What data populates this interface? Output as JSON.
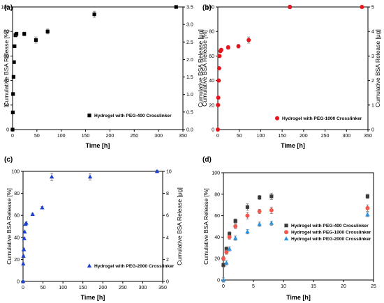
{
  "chart_data": [
    {
      "panel": "(a)",
      "type": "scatter",
      "xlabel": "Time [h]",
      "ylabel": "Cumulative BSA Release [%]",
      "y2label": "Cumulative BSA Release [μg]",
      "xlim": [
        0,
        350
      ],
      "ylim": [
        0,
        100
      ],
      "y2lim": [
        0,
        3.5
      ],
      "xticks": [
        "0",
        "50",
        "100",
        "150",
        "200",
        "250",
        "300",
        "350"
      ],
      "yticks": [
        "0",
        "20",
        "40",
        "60",
        "80",
        "100"
      ],
      "y2ticks": [
        "0.0",
        "0.5",
        "1.0",
        "1.5",
        "2.0",
        "2.5",
        "3.0",
        "3.5"
      ],
      "legend_position": "bottom-right",
      "grid": false,
      "series": [
        {
          "name": "Hydrogel with PEG-400 Crosslinker",
          "color": "#000000",
          "marker": "square",
          "x": [
            0,
            0.5,
            1,
            2,
            3,
            4,
            6,
            8,
            24,
            48,
            72,
            168,
            336
          ],
          "y": [
            0,
            14,
            29,
            43,
            55,
            68,
            77,
            78,
            78,
            73,
            80,
            94,
            100
          ],
          "err": [
            1,
            1,
            1,
            1,
            1,
            1,
            1.5,
            1.5,
            1.5,
            2.5,
            2,
            2.5,
            1
          ]
        }
      ]
    },
    {
      "panel": "(b)",
      "type": "scatter",
      "xlabel": "Time [h]",
      "ylabel": "Cumulative BSA Release [%]",
      "y2label": "Cumulative BSA Release [μg]",
      "xlim": [
        0,
        350
      ],
      "ylim": [
        0,
        100
      ],
      "y2lim": [
        0,
        5
      ],
      "xticks": [
        "0",
        "50",
        "100",
        "150",
        "200",
        "250",
        "300",
        "350"
      ],
      "yticks": [
        "0",
        "20",
        "40",
        "60",
        "80",
        "100"
      ],
      "y2ticks": [
        "0",
        "1",
        "2",
        "3",
        "4",
        "5"
      ],
      "legend_position": "bottom-right",
      "grid": false,
      "series": [
        {
          "name": "Hydrogel with PEG-1000 Crosslinker",
          "color": "#e8141c",
          "marker": "circle",
          "x": [
            0,
            0.5,
            1,
            2,
            3,
            4,
            6,
            8,
            24,
            48,
            72,
            168,
            336
          ],
          "y": [
            0,
            20,
            26,
            40,
            50,
            60,
            64,
            65,
            67,
            68,
            73,
            100,
            100
          ],
          "err": [
            1,
            1,
            1,
            1,
            1,
            1,
            1,
            1,
            1.5,
            1.5,
            2.5,
            1.5,
            1
          ]
        }
      ]
    },
    {
      "panel": "(c)",
      "type": "scatter",
      "xlabel": "Time [h]",
      "ylabel": "Cumulative BSA Release [%]",
      "y2label": "Cumulative BSA Release [μg]",
      "xlim": [
        0,
        350
      ],
      "ylim": [
        0,
        100
      ],
      "y2lim": [
        0,
        10
      ],
      "xticks": [
        "0",
        "50",
        "100",
        "150",
        "200",
        "250",
        "300",
        "350"
      ],
      "yticks": [
        "0",
        "20",
        "40",
        "60",
        "80",
        "100"
      ],
      "y2ticks": [
        "0",
        "2",
        "4",
        "6",
        "8",
        "10"
      ],
      "legend_position": "bottom-right",
      "grid": false,
      "series": [
        {
          "name": "Hydrogel with PEG-2000 Crosslinker",
          "color": "#1a3fd1",
          "marker": "triangle",
          "x": [
            0,
            0.5,
            1,
            2,
            3,
            4,
            6,
            8,
            24,
            48,
            72,
            168,
            336
          ],
          "y": [
            0,
            16,
            23,
            29,
            39,
            45,
            52,
            53,
            61,
            67,
            95,
            95,
            100
          ],
          "err": [
            1,
            1,
            1,
            1,
            1,
            1,
            1,
            1,
            1,
            1,
            3.5,
            3,
            1
          ]
        }
      ]
    },
    {
      "panel": "(d)",
      "type": "scatter",
      "xlabel": "Time [h]",
      "ylabel": "Cumulative BSA Release [%]",
      "xlim": [
        0,
        25
      ],
      "ylim": [
        0,
        100
      ],
      "xticks": [
        "0",
        "5",
        "10",
        "15",
        "20",
        "25"
      ],
      "yticks": [
        "0",
        "20",
        "40",
        "60",
        "80",
        "100"
      ],
      "legend_position": "right",
      "grid": false,
      "series": [
        {
          "name": "Hydrogel with PEG-400 Crosslinker",
          "color": "#3a3a3a",
          "marker": "square",
          "x": [
            0,
            0.5,
            1,
            2,
            4,
            6,
            8,
            24
          ],
          "y": [
            14,
            29,
            43,
            55,
            68,
            77,
            78,
            78
          ],
          "err": [
            2,
            2,
            2,
            2,
            3,
            2,
            3,
            2
          ]
        },
        {
          "name": "Hydrogel with PEG-1000 Crosslinker",
          "color": "#f0594c",
          "marker": "circle",
          "x": [
            0,
            0.5,
            1,
            2,
            4,
            6,
            8,
            24
          ],
          "y": [
            20,
            26,
            40,
            50,
            60,
            64,
            65,
            67
          ],
          "err": [
            2,
            2,
            2,
            2,
            3,
            2,
            3,
            3
          ]
        },
        {
          "name": "Hydrogel with PEG-2000 Crosslinker",
          "color": "#2a8fdc",
          "marker": "triangle",
          "x": [
            0,
            0.5,
            1,
            2,
            4,
            6,
            8,
            24
          ],
          "y": [
            0,
            16,
            29,
            39,
            45,
            52,
            53,
            61
          ],
          "err": [
            2,
            2,
            2,
            2,
            2,
            2,
            2,
            2
          ]
        }
      ]
    }
  ]
}
